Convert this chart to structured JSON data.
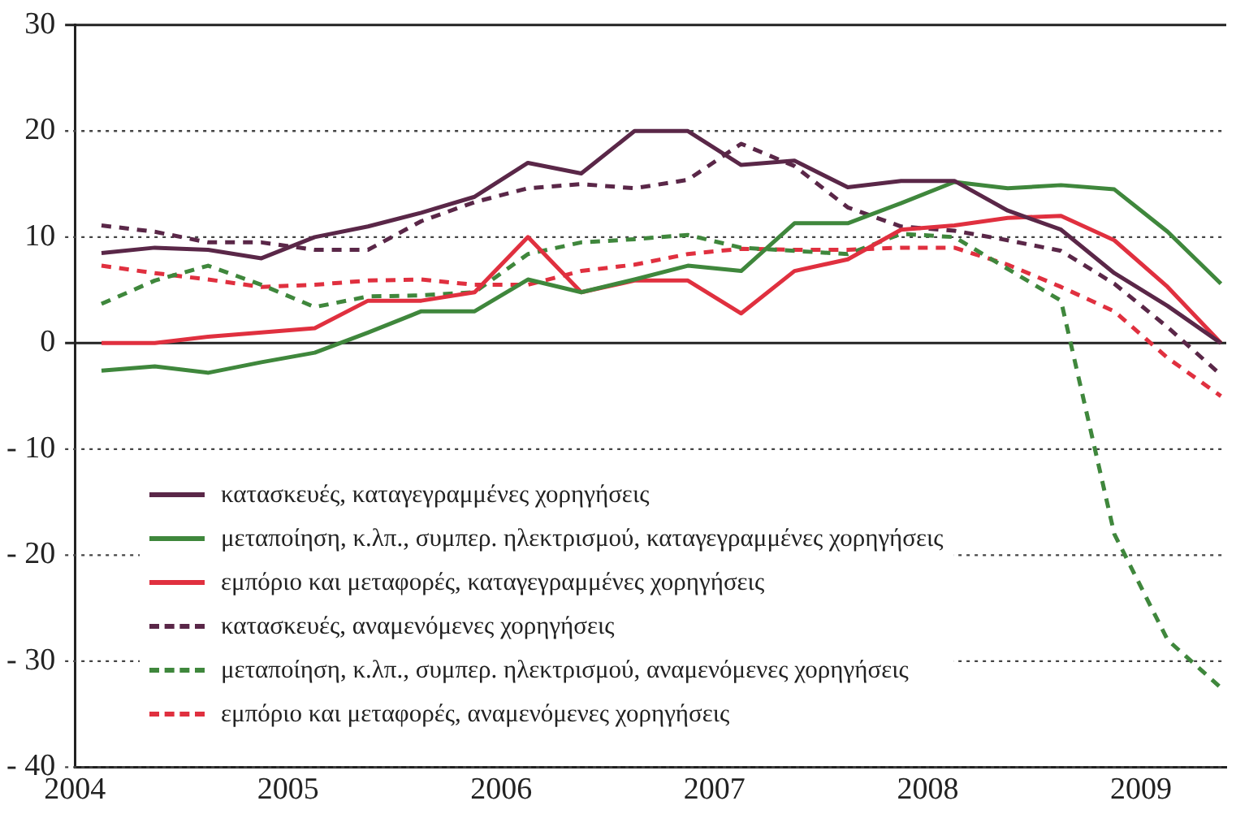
{
  "chart_data": {
    "type": "line",
    "x": [
      2004.125,
      2004.375,
      2004.625,
      2004.875,
      2005.125,
      2005.375,
      2005.625,
      2005.875,
      2006.125,
      2006.375,
      2006.625,
      2006.875,
      2007.125,
      2007.375,
      2007.625,
      2007.875,
      2008.125,
      2008.375,
      2008.625,
      2008.875,
      2009.125,
      2009.375
    ],
    "series": [
      {
        "name": "κατασκευές, καταγεγραμμένες χορηγήσεις",
        "color": "#5a2748",
        "line_style": "solid",
        "values": [
          8.5,
          9,
          8.8,
          8,
          10,
          11,
          12.3,
          13.8,
          17,
          16,
          20,
          20,
          16.8,
          17.2,
          14.7,
          15.3,
          15.3,
          12.5,
          10.7,
          6.6,
          3.5,
          0
        ]
      },
      {
        "name": "μεταποίηση, κ.λπ., συμπερ. ηλεκτρισμού, καταγεγραμμένες χορηγήσεις",
        "color": "#3f873c",
        "line_style": "solid",
        "values": [
          -2.6,
          -2.2,
          -2.8,
          -1.8,
          -0.9,
          1,
          3,
          3,
          6,
          4.8,
          6,
          7.3,
          6.8,
          11.3,
          11.3,
          13.2,
          15.2,
          14.6,
          14.9,
          14.5,
          10.5,
          5.6
        ]
      },
      {
        "name": "εμπόριο και μεταφορές, καταγεγραμμένες χορηγήσεις",
        "color": "#e0303f",
        "line_style": "solid",
        "values": [
          0,
          0,
          0.6,
          1,
          1.4,
          4,
          4,
          4.8,
          10,
          4.8,
          5.9,
          5.9,
          2.8,
          6.8,
          7.9,
          10.7,
          11.1,
          11.8,
          12,
          9.7,
          5.3,
          0
        ]
      },
      {
        "name": "κατασκευές, αναμενόμενες χορηγήσεις",
        "color": "#5a2748",
        "line_style": "dashed",
        "values": [
          11.1,
          10.5,
          9.5,
          9.5,
          8.8,
          8.8,
          11.5,
          13.3,
          14.6,
          15,
          14.6,
          15.4,
          18.8,
          16.7,
          12.8,
          11,
          10.6,
          9.7,
          8.7,
          5.6,
          1.5,
          -3
        ]
      },
      {
        "name": "μεταποίηση, κ.λπ., συμπερ. ηλεκτρισμού, αναμενόμενες χορηγήσεις",
        "color": "#3f873c",
        "line_style": "dashed",
        "values": [
          3.7,
          5.9,
          7.3,
          5.5,
          3.4,
          4.4,
          4.5,
          4.8,
          8.4,
          9.5,
          9.8,
          10.2,
          9,
          8.7,
          8.4,
          10.3,
          10,
          7,
          4,
          -18,
          -28,
          -32.5
        ]
      },
      {
        "name": "εμπόριο και μεταφορές, αναμενόμενες χορηγήσεις",
        "color": "#e0303f",
        "line_style": "dashed",
        "values": [
          7.3,
          6.6,
          6,
          5.3,
          5.5,
          5.9,
          6,
          5.5,
          5.5,
          6.8,
          7.4,
          8.4,
          8.9,
          8.8,
          8.8,
          9,
          9,
          7.4,
          5.3,
          3,
          -1.4,
          -5
        ]
      }
    ],
    "xlim": [
      2004,
      2009.4
    ],
    "xticks": [
      2004,
      2005,
      2006,
      2007,
      2008,
      2009
    ],
    "ylim": [
      -40,
      30
    ],
    "yticks": [
      {
        "value": -40,
        "label": "- 40"
      },
      {
        "value": -30,
        "label": "- 30"
      },
      {
        "value": -20,
        "label": "- 20"
      },
      {
        "value": -10,
        "label": "- 10"
      },
      0,
      10,
      20,
      30
    ],
    "grid": "y",
    "legend": "bottom left"
  }
}
